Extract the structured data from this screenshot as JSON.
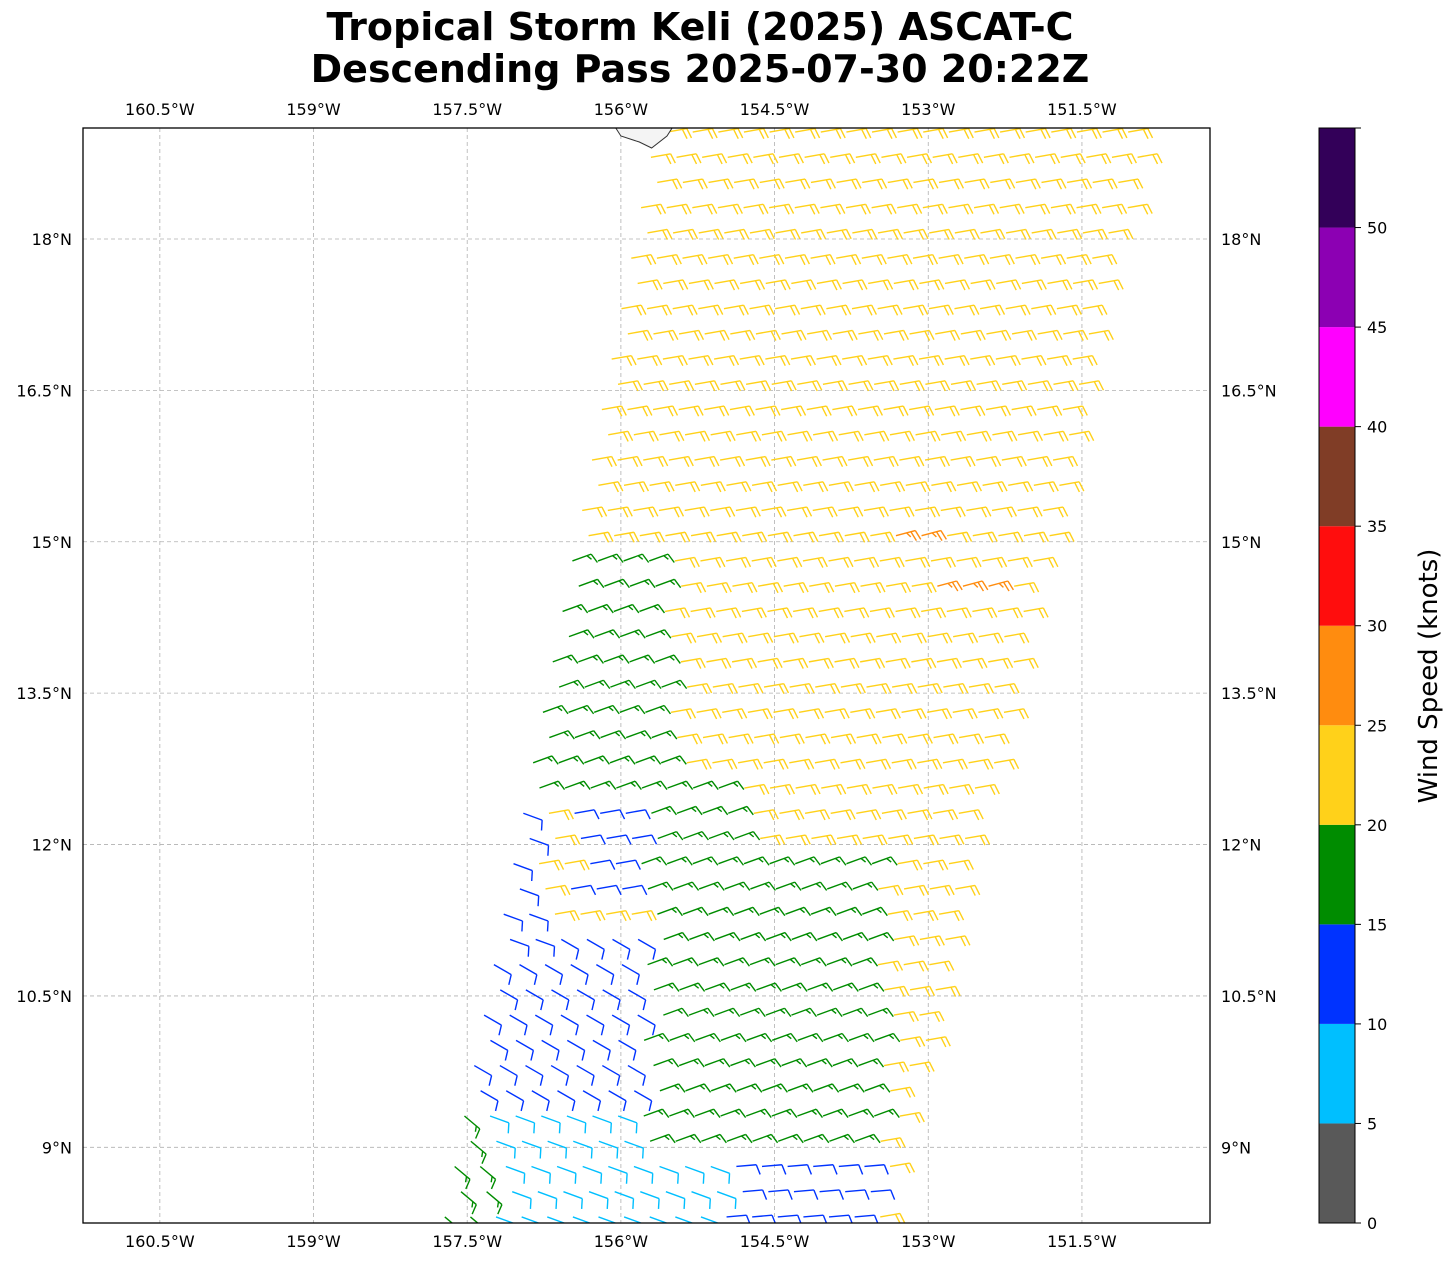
{
  "title": {
    "line1": "Tropical Storm Keli (2025) ASCAT-C",
    "line2": "Descending Pass 2025-07-30 20:22Z"
  },
  "map": {
    "lon_range": [
      -161.25,
      -150.25
    ],
    "lat_range": [
      8.25,
      19.1
    ],
    "lon_ticks": [
      {
        "value": -160.5,
        "label": "160.5°W"
      },
      {
        "value": -159.0,
        "label": "159°W"
      },
      {
        "value": -157.5,
        "label": "157.5°W"
      },
      {
        "value": -156.0,
        "label": "156°W"
      },
      {
        "value": -154.5,
        "label": "154.5°W"
      },
      {
        "value": -153.0,
        "label": "153°W"
      },
      {
        "value": -151.5,
        "label": "151.5°W"
      }
    ],
    "lat_ticks": [
      {
        "value": 18.0,
        "label": "18°N"
      },
      {
        "value": 16.5,
        "label": "16.5°N"
      },
      {
        "value": 15.0,
        "label": "15°N"
      },
      {
        "value": 13.5,
        "label": "13.5°N"
      },
      {
        "value": 12.0,
        "label": "12°N"
      },
      {
        "value": 10.5,
        "label": "10.5°N"
      },
      {
        "value": 9.0,
        "label": "9°N"
      }
    ],
    "gridlines": true,
    "swath": {
      "left_edge": [
        [
          -157.85,
          8.25
        ],
        [
          -155.8,
          18.95
        ]
      ],
      "right_edge": [
        [
          -153.4,
          8.25
        ],
        [
          -150.8,
          19.05
        ]
      ]
    }
  },
  "colorbar": {
    "label": "Wind Speed (knots)",
    "range": [
      0,
      55
    ],
    "bins": [
      {
        "min": 0,
        "max": 5,
        "color": "#595959"
      },
      {
        "min": 5,
        "max": 10,
        "color": "#00bfff"
      },
      {
        "min": 10,
        "max": 15,
        "color": "#0033ff"
      },
      {
        "min": 15,
        "max": 20,
        "color": "#008c00"
      },
      {
        "min": 20,
        "max": 25,
        "color": "#ffd11a"
      },
      {
        "min": 25,
        "max": 30,
        "color": "#ff8c0f"
      },
      {
        "min": 30,
        "max": 35,
        "color": "#ff0d0d"
      },
      {
        "min": 35,
        "max": 40,
        "color": "#803d26"
      },
      {
        "min": 40,
        "max": 45,
        "color": "#ff00ff"
      },
      {
        "min": 45,
        "max": 50,
        "color": "#8c00b3"
      },
      {
        "min": 50,
        "max": 55,
        "color": "#330059"
      }
    ],
    "ticks": [
      {
        "value": 0,
        "label": "0"
      },
      {
        "value": 5,
        "label": "5"
      },
      {
        "value": 10,
        "label": "10"
      },
      {
        "value": 15,
        "label": "15"
      },
      {
        "value": 20,
        "label": "20"
      },
      {
        "value": 25,
        "label": "25"
      },
      {
        "value": 30,
        "label": "30"
      },
      {
        "value": 35,
        "label": "35"
      },
      {
        "value": 40,
        "label": "40"
      },
      {
        "value": 45,
        "label": "45"
      },
      {
        "value": 50,
        "label": "50"
      }
    ]
  },
  "wind_regions": [
    {
      "lat": [
        17.5,
        19.1
      ],
      "lon": [
        -156.2,
        -154.6
      ],
      "speed": 22,
      "dir": 80
    },
    {
      "lat": [
        18.6,
        19.1
      ],
      "lon": [
        -156.1,
        -155.6
      ],
      "speed": 27,
      "dir": 80
    },
    {
      "lat": [
        15.0,
        15.3
      ],
      "lon": [
        -153.5,
        -152.9
      ],
      "speed": 27,
      "dir": 75
    },
    {
      "lat": [
        14.4,
        14.7
      ],
      "lon": [
        -153.0,
        -152.4
      ],
      "speed": 27,
      "dir": 75
    },
    {
      "lat": [
        12.0,
        19.1
      ],
      "lon": [
        -154.8,
        -150.0
      ],
      "speed": 22,
      "dir": 80
    },
    {
      "lat": [
        15.3,
        19.1
      ],
      "lon": [
        -153.8,
        -150.0
      ],
      "speed": 17,
      "dir": 80
    },
    {
      "lat": [
        17.5,
        19.1
      ],
      "lon": [
        -155.0,
        -153.0
      ],
      "speed": 17,
      "dir": 80
    },
    {
      "lat": [
        12.5,
        15.0
      ],
      "lon": [
        -158.5,
        -155.6
      ],
      "speed": 17,
      "dir": 70
    },
    {
      "lat": [
        9.0,
        12.7
      ],
      "lon": [
        -155.8,
        -153.5
      ],
      "speed": 17,
      "dir": 70
    },
    {
      "lat": [
        11.0,
        12.7
      ],
      "lon": [
        -157.8,
        -156.8
      ],
      "speed": 12,
      "dir": 110
    },
    {
      "lat": [
        11.5,
        12.8
      ],
      "lon": [
        -156.5,
        -154.8
      ],
      "speed": 12,
      "dir": 80
    },
    {
      "lat": [
        9.5,
        11.3
      ],
      "lon": [
        -158.5,
        -155.8
      ],
      "speed": 12,
      "dir": 120
    },
    {
      "lat": [
        8.25,
        10.6
      ],
      "lon": [
        -159.0,
        -157.3
      ],
      "speed": 17,
      "dir": 130
    },
    {
      "lat": [
        8.25,
        9.8
      ],
      "lon": [
        -157.3,
        -155.0
      ],
      "speed": 8,
      "dir": 110
    },
    {
      "lat": [
        8.25,
        9.8
      ],
      "lon": [
        -155.0,
        -153.5
      ],
      "speed": 12,
      "dir": 85
    },
    {
      "lat": [
        8.25,
        19.1
      ],
      "lon": [
        -160.0,
        -150.0
      ],
      "speed": 22,
      "dir": 80
    }
  ]
}
